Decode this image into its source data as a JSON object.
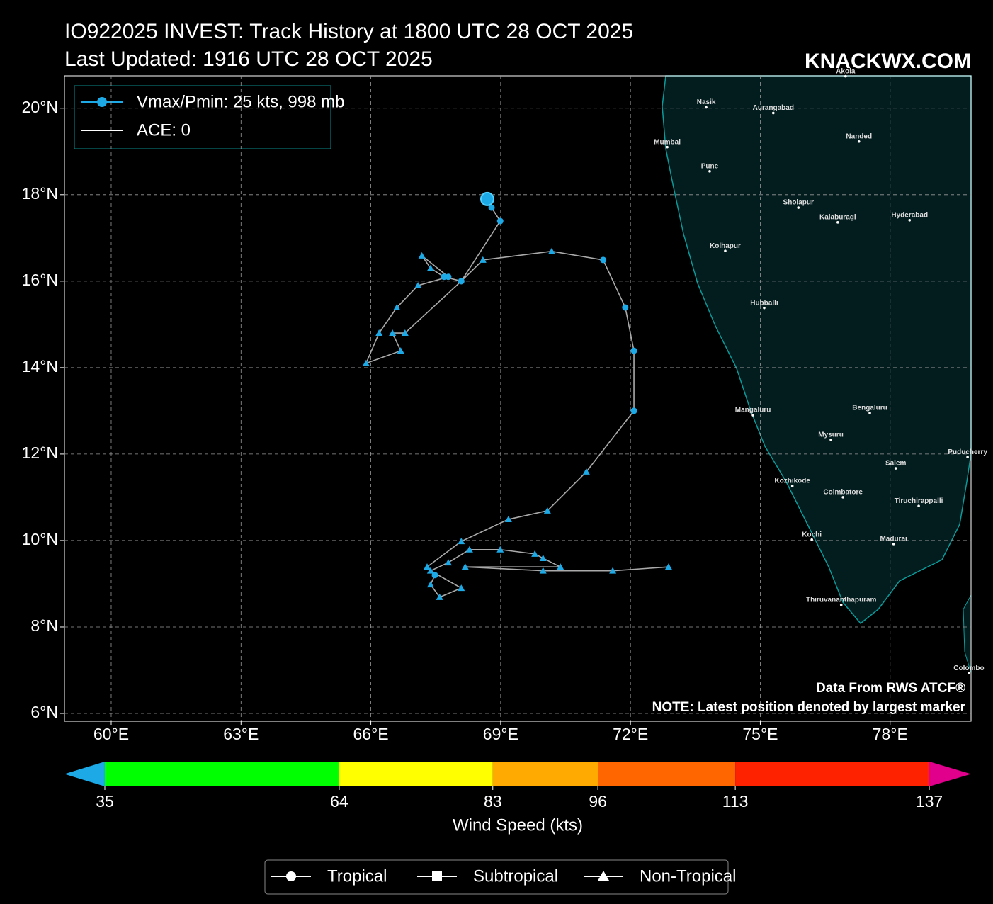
{
  "chart_data": {
    "type": "track",
    "title": "IO922025 INVEST: Track History at 1800 UTC 28 OCT 2025",
    "subtitle": "Last Updated: 1916 UTC 28 OCT 2025",
    "watermark": "KNACKWX.COM",
    "annotations": [
      "Data From RWS ATCF®",
      "NOTE: Latest position denoted by largest marker"
    ],
    "x": [
      72.88,
      71.59,
      69.98,
      68.18,
      70.38,
      69.98,
      69.79,
      68.99,
      68.28,
      67.79,
      67.38,
      68.09,
      67.59,
      67.38,
      67.48,
      67.3,
      68.09,
      69.18,
      70.08,
      70.98,
      72.08,
      72.08,
      71.88,
      71.37,
      70.18,
      68.59,
      68.09,
      67.69,
      67.38,
      67.18,
      67.79,
      67.09,
      66.6,
      66.19,
      65.89,
      66.69,
      66.5,
      66.79,
      68.09,
      68.99,
      68.79,
      68.69
    ],
    "series": [
      {
        "name": "Vmax/Pmin: 25 kts, 998 mb",
        "color": "#1ca9e6",
        "values": [
          9.39,
          9.3,
          9.3,
          9.39,
          9.39,
          9.59,
          9.69,
          9.79,
          9.79,
          9.49,
          9.3,
          8.9,
          8.69,
          8.98,
          9.2,
          9.39,
          9.98,
          10.49,
          10.69,
          11.59,
          13.0,
          14.39,
          15.39,
          16.49,
          16.69,
          16.49,
          16.0,
          16.1,
          16.3,
          16.59,
          16.1,
          15.9,
          15.39,
          14.8,
          14.1,
          14.39,
          14.8,
          14.8,
          16.0,
          17.39,
          17.7,
          17.9
        ],
        "markers": [
          "triangle",
          "triangle",
          "triangle",
          "triangle",
          "triangle",
          "triangle",
          "triangle",
          "triangle",
          "triangle",
          "triangle",
          "triangle",
          "triangle",
          "triangle",
          "triangle",
          "circle",
          "triangle",
          "triangle",
          "triangle",
          "triangle",
          "triangle",
          "circle",
          "circle",
          "circle",
          "circle",
          "triangle",
          "triangle",
          "circle",
          "circle",
          "triangle",
          "triangle",
          "circle",
          "triangle",
          "triangle",
          "triangle",
          "triangle",
          "triangle",
          "triangle",
          "triangle",
          "circle",
          "circle",
          "circle",
          "circle"
        ]
      }
    ],
    "ace_legend": {
      "name": "ACE: 0",
      "color": "#ffffff"
    },
    "track_color": "#aaaaaa",
    "xlim": [
      58.92,
      79.87
    ],
    "ylim": [
      5.82,
      20.75
    ],
    "xticks": [
      {
        "value": 60,
        "label": "60°E"
      },
      {
        "value": 63,
        "label": "63°E"
      },
      {
        "value": 66,
        "label": "66°E"
      },
      {
        "value": 69,
        "label": "69°E"
      },
      {
        "value": 72,
        "label": "72°E"
      },
      {
        "value": 75,
        "label": "75°E"
      },
      {
        "value": 78,
        "label": "78°E"
      }
    ],
    "yticks": [
      {
        "value": 6,
        "label": "6°N"
      },
      {
        "value": 8,
        "label": "8°N"
      },
      {
        "value": 10,
        "label": "10°N"
      },
      {
        "value": 12,
        "label": "12°N"
      },
      {
        "value": 14,
        "label": "14°N"
      },
      {
        "value": 16,
        "label": "16°N"
      },
      {
        "value": 18,
        "label": "18°N"
      },
      {
        "value": 20,
        "label": "20°N"
      }
    ],
    "grid": true,
    "cities": [
      {
        "name": "Akola",
        "lon": 76.97,
        "lat": 20.74
      },
      {
        "name": "Nasik",
        "lon": 73.75,
        "lat": 20.02
      },
      {
        "name": "Aurangabad",
        "lon": 75.3,
        "lat": 19.89
      },
      {
        "name": "Mumbai",
        "lon": 72.85,
        "lat": 19.1
      },
      {
        "name": "Nanded",
        "lon": 77.28,
        "lat": 19.23
      },
      {
        "name": "Pune",
        "lon": 73.83,
        "lat": 18.54
      },
      {
        "name": "Sholapur",
        "lon": 75.88,
        "lat": 17.7
      },
      {
        "name": "Kalaburagi",
        "lon": 76.79,
        "lat": 17.36
      },
      {
        "name": "Hyderabad",
        "lon": 78.45,
        "lat": 17.41
      },
      {
        "name": "Kolhapur",
        "lon": 74.19,
        "lat": 16.7
      },
      {
        "name": "Hubballi",
        "lon": 75.09,
        "lat": 15.38
      },
      {
        "name": "Mangaluru",
        "lon": 74.83,
        "lat": 12.9
      },
      {
        "name": "Bengaluru",
        "lon": 77.53,
        "lat": 12.95
      },
      {
        "name": "Mysuru",
        "lon": 76.63,
        "lat": 12.33
      },
      {
        "name": "Puducherry",
        "lon": 79.79,
        "lat": 11.93
      },
      {
        "name": "Salem",
        "lon": 78.13,
        "lat": 11.67
      },
      {
        "name": "Kozhikode",
        "lon": 75.74,
        "lat": 11.26
      },
      {
        "name": "Coimbatore",
        "lon": 76.91,
        "lat": 11.0
      },
      {
        "name": "Tiruchirappalli",
        "lon": 78.66,
        "lat": 10.8
      },
      {
        "name": "Kochi",
        "lon": 76.19,
        "lat": 10.02
      },
      {
        "name": "Madurai",
        "lon": 78.08,
        "lat": 9.92
      },
      {
        "name": "Thiruvananthapuram",
        "lon": 76.87,
        "lat": 8.51
      },
      {
        "name": "Colombo",
        "lon": 79.82,
        "lat": 6.93
      }
    ],
    "colorbar": {
      "label": "Wind Speed (kts)",
      "ticks": [
        35,
        64,
        83,
        96,
        113,
        137
      ],
      "colors": [
        "#00ff00",
        "#ffff00",
        "#ffaa00",
        "#ff6600",
        "#ff2200"
      ],
      "under": "#1ca9e6",
      "over": "#e0008c"
    },
    "marker_legend": [
      {
        "label": "Tropical",
        "marker": "circle"
      },
      {
        "label": "Subtropical",
        "marker": "square"
      },
      {
        "label": "Non-Tropical",
        "marker": "triangle"
      }
    ]
  }
}
